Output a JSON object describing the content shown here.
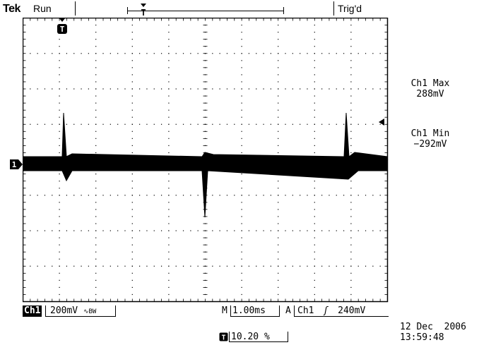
{
  "header": {
    "brand": "Tek",
    "run_state": "Run",
    "trigger_state": "Trig'd"
  },
  "measurements": [
    {
      "label": "Ch1 Max",
      "value": "288mV"
    },
    {
      "label": "Ch1 Min",
      "value": "−292mV"
    }
  ],
  "status": {
    "channel": "Ch1",
    "volts_div": "200mV",
    "bw_symbol": "∿BW",
    "time_prefix": "M",
    "time_div": "1.00ms",
    "trigger_prefix": "A",
    "trigger_source": "Ch1",
    "trigger_slope": "ʃ",
    "trigger_level": "240mV",
    "trigger_position": "10.20 %"
  },
  "timestamp": {
    "date": "12 Dec  2006",
    "time": "13:59:48"
  },
  "colors": {
    "trace": "#000000",
    "grid": "#000000",
    "background": "#ffffff"
  },
  "icons": {
    "trigger_marker": "T-marker-icon",
    "ground_marker": "channel-1-ground-icon",
    "trigger_level": "trigger-level-arrow-icon"
  }
}
